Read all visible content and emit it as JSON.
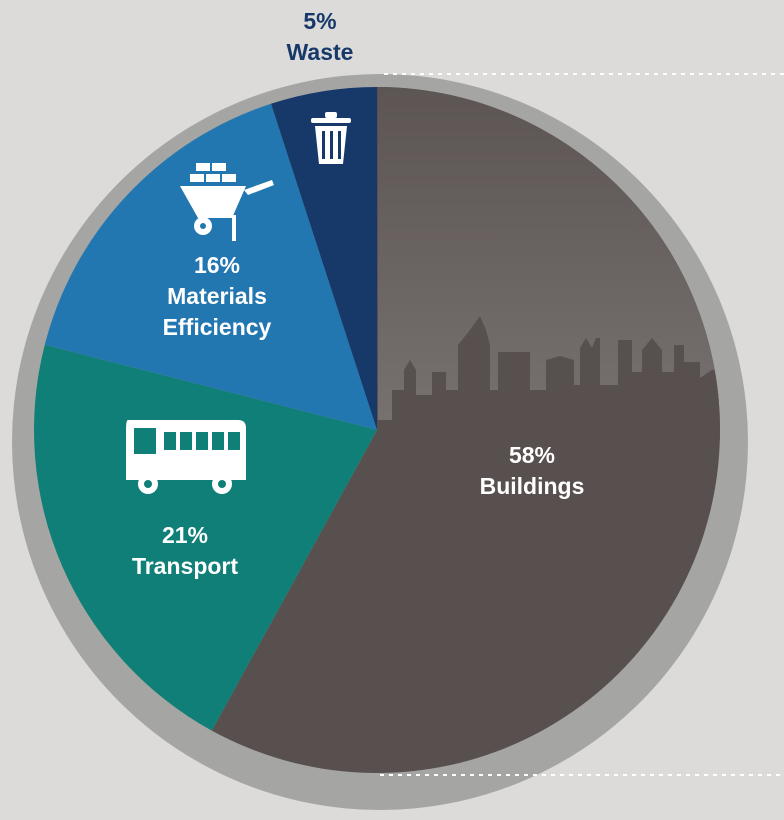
{
  "chart_data": {
    "type": "pie",
    "categories": [
      "Buildings",
      "Transport",
      "Materials Efficiency",
      "Waste"
    ],
    "values": [
      58,
      21,
      16,
      5
    ],
    "value_labels": [
      "58%",
      "21%",
      "16%",
      "5%"
    ],
    "colors": [
      "#58504f",
      "#0f7f78",
      "#2377b0",
      "#16396a"
    ]
  }
}
